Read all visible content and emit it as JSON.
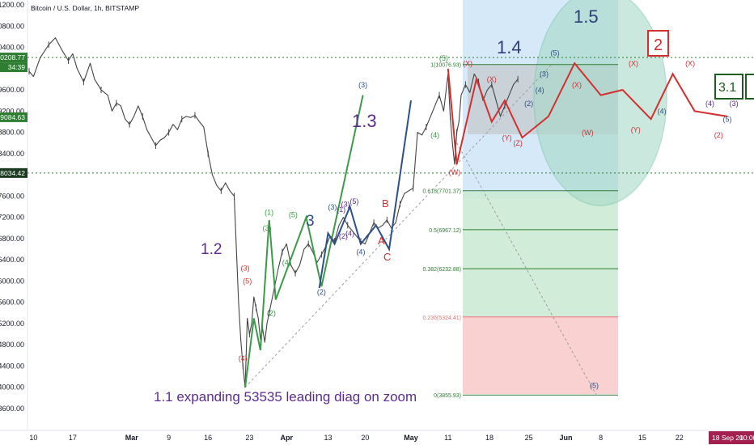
{
  "header": {
    "title": "Bitcoin / U.S. Dollar, 1h, BITSTAMP"
  },
  "colors": {
    "candle": "#444444",
    "price_green": "#2e7d32",
    "dotted": "#2e7d32",
    "w_green": "#3c9a4a",
    "w_navy": "#2d5187",
    "w_red": "#d32f2f",
    "w_purple": "#5b2c8f",
    "fib_line": "#2e7d32",
    "fib_zone1": "#c9ead2",
    "fib_zone2": "#f8cccc",
    "box_blue": "#cfe5f8",
    "circle": "#86c9b6",
    "date_red": "#a4214f"
  },
  "y_axis": {
    "ticks": [
      "11200.00",
      "10800.00",
      "10400.00",
      "9600.00",
      "9200.00",
      "8800.00",
      "8400.00",
      "7600.00",
      "7200.00",
      "6800.00",
      "6400.00",
      "6000.00",
      "5600.00",
      "5200.00",
      "4800.00",
      "4400.00",
      "4000.00",
      "3600.00"
    ],
    "tags": [
      {
        "id": "t1",
        "text": "10208.77"
      },
      {
        "id": "t2",
        "text": "34:39"
      },
      {
        "id": "t3",
        "text": "9084.63"
      },
      {
        "id": "t4",
        "text": "8034.42"
      }
    ]
  },
  "x_axis": {
    "ticks": [
      "10",
      "17",
      "Mar",
      "9",
      "16",
      "23",
      "Apr",
      "13",
      "20",
      "May",
      "11",
      "18",
      "25",
      "Jun",
      "8",
      "15",
      "22"
    ],
    "badge": {
      "date": "18 Sep 20",
      "time": "10:00"
    }
  },
  "fib_levels": [
    {
      "ratio": "1",
      "price": "10076.93",
      "label": "1(10076.93)"
    },
    {
      "ratio": "0.618",
      "price": "7701.37",
      "label": "0.618(7701.37)"
    },
    {
      "ratio": "0.5",
      "price": "6967.12",
      "label": "0.5(6967.12)"
    },
    {
      "ratio": "0.382",
      "price": "6232.88",
      "label": "0.382(6232.88)"
    },
    {
      "ratio": "0.236",
      "price": "5324.41",
      "label": "0.236(5324.41)"
    },
    {
      "ratio": "0",
      "price": "3855.93",
      "label": "0(3855.93)"
    }
  ],
  "chart_data": {
    "type": "line",
    "title": "Bitcoin / U.S. Dollar, 1h, BITSTAMP",
    "xlabel": "",
    "ylabel": "",
    "ylim": [
      3400,
      11400
    ],
    "x_ticks": [
      "10",
      "17",
      "Mar",
      "9",
      "16",
      "23",
      "Apr",
      "13",
      "20",
      "May",
      "11",
      "18",
      "25",
      "Jun",
      "8",
      "15",
      "22"
    ],
    "y_ticks": [
      11200,
      10800,
      10400,
      9600,
      9200,
      8800,
      8400,
      7600,
      7200,
      6800,
      6400,
      6000,
      5600,
      5200,
      4800,
      4400,
      4000,
      3600
    ],
    "x_index_range": [
      0,
      225
    ],
    "horizontal_levels": [
      10208.77,
      8034.42
    ],
    "price": [
      [
        0,
        9950
      ],
      [
        2,
        9850
      ],
      [
        5,
        10200
      ],
      [
        9,
        10450
      ],
      [
        12,
        10580
      ],
      [
        15,
        10350
      ],
      [
        18,
        10150
      ],
      [
        20,
        10280
      ],
      [
        22,
        10000
      ],
      [
        25,
        9750
      ],
      [
        28,
        10100
      ],
      [
        30,
        9800
      ],
      [
        33,
        9600
      ],
      [
        36,
        9500
      ],
      [
        38,
        9200
      ],
      [
        40,
        9350
      ],
      [
        42,
        9300
      ],
      [
        44,
        9050
      ],
      [
        46,
        8950
      ],
      [
        48,
        9100
      ],
      [
        50,
        9300
      ],
      [
        52,
        9100
      ],
      [
        54,
        8850
      ],
      [
        56,
        8700
      ],
      [
        58,
        8550
      ],
      [
        60,
        8650
      ],
      [
        62,
        8700
      ],
      [
        64,
        8800
      ],
      [
        66,
        8950
      ],
      [
        68,
        8850
      ],
      [
        70,
        9050
      ],
      [
        72,
        9100
      ],
      [
        74,
        9080
      ],
      [
        76,
        9120
      ],
      [
        78,
        9000
      ],
      [
        80,
        8900
      ],
      [
        82,
        8400
      ],
      [
        84,
        8000
      ],
      [
        86,
        7800
      ],
      [
        88,
        7700
      ],
      [
        90,
        7850
      ],
      [
        92,
        7700
      ],
      [
        94,
        7600
      ],
      [
        96,
        5600
      ],
      [
        97,
        4900
      ],
      [
        98,
        4400
      ],
      [
        99,
        4000
      ],
      [
        100,
        5300
      ],
      [
        101,
        5000
      ],
      [
        102,
        5200
      ],
      [
        103,
        5700
      ],
      [
        104,
        5500
      ],
      [
        105,
        5300
      ],
      [
        106,
        4900
      ],
      [
        107,
        5100
      ],
      [
        108,
        4850
      ],
      [
        109,
        5200
      ],
      [
        110,
        5400
      ],
      [
        112,
        5800
      ],
      [
        114,
        6200
      ],
      [
        116,
        6550
      ],
      [
        118,
        6700
      ],
      [
        120,
        6300
      ],
      [
        122,
        6150
      ],
      [
        124,
        6300
      ],
      [
        126,
        6600
      ],
      [
        128,
        6700
      ],
      [
        130,
        6550
      ],
      [
        132,
        6350
      ],
      [
        134,
        6500
      ],
      [
        136,
        6650
      ],
      [
        138,
        6850
      ],
      [
        140,
        6750
      ],
      [
        142,
        7050
      ],
      [
        144,
        7200
      ],
      [
        146,
        7050
      ],
      [
        148,
        6950
      ],
      [
        150,
        6850
      ],
      [
        152,
        6750
      ],
      [
        154,
        6700
      ],
      [
        156,
        6900
      ],
      [
        158,
        7100
      ],
      [
        160,
        7000
      ],
      [
        162,
        7050
      ],
      [
        164,
        7150
      ],
      [
        166,
        7000
      ],
      [
        168,
        7100
      ],
      [
        170,
        7450
      ],
      [
        172,
        7650
      ],
      [
        174,
        7700
      ],
      [
        176,
        7750
      ],
      [
        178,
        8800
      ],
      [
        180,
        8750
      ],
      [
        182,
        8900
      ],
      [
        184,
        9100
      ],
      [
        186,
        9300
      ],
      [
        188,
        9500
      ],
      [
        190,
        9200
      ],
      [
        192,
        9900
      ],
      [
        193,
        9100
      ],
      [
        194,
        8600
      ],
      [
        195,
        8200
      ],
      [
        196,
        8800
      ],
      [
        197,
        9000
      ],
      [
        198,
        9500
      ],
      [
        200,
        9700
      ],
      [
        202,
        9550
      ],
      [
        204,
        9900
      ],
      [
        206,
        9750
      ],
      [
        208,
        9400
      ],
      [
        210,
        9600
      ],
      [
        212,
        9700
      ],
      [
        214,
        9400
      ],
      [
        216,
        9100
      ],
      [
        218,
        9300
      ],
      [
        220,
        9500
      ],
      [
        222,
        9700
      ],
      [
        224,
        9800
      ]
    ],
    "wave_lines": {
      "green_1_2": [
        [
          99,
          4000
        ],
        [
          103,
          5300
        ],
        [
          106,
          4700
        ],
        [
          110,
          7150
        ],
        [
          113,
          5650
        ],
        [
          127,
          7200
        ],
        [
          134,
          5900
        ],
        [
          153,
          9500
        ]
      ],
      "navy_subwaves": [
        [
          133,
          5870
        ],
        [
          137,
          6900
        ],
        [
          140,
          6700
        ],
        [
          147,
          7400
        ],
        [
          152,
          6700
        ],
        [
          159,
          7050
        ],
        [
          165,
          6600
        ],
        [
          175,
          9400
        ]
      ],
      "red_1_4": [
        [
          192,
          10000
        ],
        [
          196,
          8200
        ],
        [
          205,
          9800
        ],
        [
          212,
          9000
        ],
        [
          218,
          9400
        ],
        [
          226,
          8700
        ],
        [
          238,
          9100
        ],
        [
          250,
          10100
        ],
        [
          262,
          9500
        ],
        [
          272,
          9600
        ],
        [
          285,
          9050
        ],
        [
          295,
          9900
        ],
        [
          305,
          9200
        ],
        [
          320,
          9100
        ]
      ],
      "dotted_support": [
        [
          99,
          4000
        ],
        [
          240,
          10100
        ]
      ],
      "dotted_projection": [
        [
          196,
          8600
        ],
        [
          260,
          3855
        ]
      ]
    },
    "wave_labels": [
      "1.1 expanding 53535 leading diag on zoom",
      "1.2",
      "1.3",
      "1.4",
      "1.5",
      "3",
      "2",
      "3.1",
      "A",
      "B",
      "C",
      "(1)",
      "(2)",
      "(3)",
      "(4)",
      "(5)",
      "(W)",
      "(X)",
      "(Y)"
    ]
  },
  "annotations": {
    "main_text": "1.1 expanding 53535 leading diag on zoom",
    "label_1_2": "1.2",
    "label_1_3": "1.3",
    "label_1_4": "1.4",
    "label_1_5": "1.5",
    "label_3": "3",
    "label_2_box": "2",
    "label_3_1_box": "3.1",
    "label_A": "A",
    "label_B": "B",
    "label_C": "C"
  },
  "wave_marks": {
    "navy": [
      {
        "t": "(5)",
        "i": 241,
        "p": 10250
      },
      {
        "t": "(3)",
        "i": 153,
        "p": 9650
      },
      {
        "t": "(3)",
        "i": 236,
        "p": 9850
      },
      {
        "t": "(4)",
        "i": 234,
        "p": 9550
      },
      {
        "t": "(2)",
        "i": 229,
        "p": 9300
      },
      {
        "t": "(4)",
        "i": 152,
        "p": 6500
      },
      {
        "t": "(3)",
        "i": 139,
        "p": 7350
      },
      {
        "t": "(2)",
        "i": 134,
        "p": 5750
      },
      {
        "t": "(5)",
        "i": 259,
        "p": 3990
      },
      {
        "t": "(4)",
        "i": 290,
        "p": 9150
      },
      {
        "t": "(5)",
        "i": 320,
        "p": 9000
      }
    ],
    "green": [
      {
        "t": "(5)",
        "i": 190,
        "p": 10150
      },
      {
        "t": "(4)",
        "i": 186,
        "p": 8700
      },
      {
        "t": "(1)",
        "i": 110,
        "p": 7250
      },
      {
        "t": "(2)",
        "i": 111,
        "p": 5350
      },
      {
        "t": "(5)",
        "i": 121,
        "p": 7200
      },
      {
        "t": "(3)",
        "i": 109,
        "p": 6950
      },
      {
        "t": "(4)",
        "i": 118,
        "p": 6300
      }
    ],
    "red": [
      {
        "t": "(X)",
        "i": 201,
        "p": 10050
      },
      {
        "t": "(X)",
        "i": 251,
        "p": 9650
      },
      {
        "t": "(X)",
        "i": 277,
        "p": 10050
      },
      {
        "t": "(X)",
        "i": 303,
        "p": 10050
      },
      {
        "t": "(X)",
        "i": 212,
        "p": 9750
      },
      {
        "t": "(W)",
        "i": 195,
        "p": 8000
      },
      {
        "t": "(W)",
        "i": 256,
        "p": 8750
      },
      {
        "t": "(Y)",
        "i": 219,
        "p": 8650
      },
      {
        "t": "(Y)",
        "i": 278,
        "p": 8800
      },
      {
        "t": "(Z)",
        "i": 224,
        "p": 8550
      },
      {
        "t": "(3)",
        "i": 99,
        "p": 6200
      },
      {
        "t": "(5)",
        "i": 100,
        "p": 5950
      },
      {
        "t": "(4)",
        "i": 98,
        "p": 4500
      },
      {
        "t": "(2)",
        "i": 316,
        "p": 8700
      }
    ],
    "purple": [
      {
        "t": "(1)",
        "i": 143,
        "p": 7300
      },
      {
        "t": "(3)",
        "i": 145,
        "p": 7400
      },
      {
        "t": "(5)",
        "i": 149,
        "p": 7450
      },
      {
        "t": "(2)",
        "i": 144,
        "p": 6800
      },
      {
        "t": "(4)",
        "i": 147,
        "p": 6850
      },
      {
        "t": "(4)",
        "i": 312,
        "p": 9300
      },
      {
        "t": "(1)",
        "i": 316,
        "p": 9450
      },
      {
        "t": "(3)",
        "i": 323,
        "p": 9300
      }
    ]
  }
}
